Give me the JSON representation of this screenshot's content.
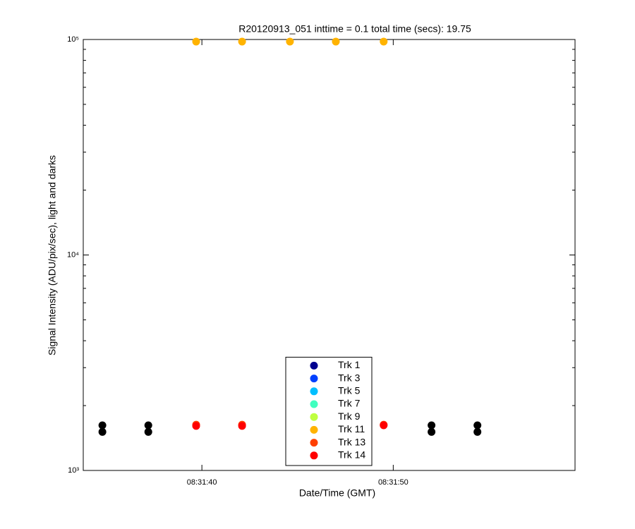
{
  "chart_data": {
    "type": "scatter",
    "title": "R20120913_051 inttime = 0.1 total time (secs): 19.75",
    "x_label": "Date/Time (GMT)",
    "y_label": "Signal Intensity (ADU/pix/sec), light and darks",
    "x": [
      "08:31:34.8",
      "08:31:37.2",
      "08:31:39.7",
      "08:31:42.1",
      "08:31:44.6",
      "08:31:47.0",
      "08:31:49.5",
      "08:31:52.0",
      "08:31:54.4"
    ],
    "xlim": [
      "08:31:33.8",
      "08:31:59.5"
    ],
    "xticks": [
      "08:31:40",
      "08:31:50"
    ],
    "ylim": [
      1000,
      100000
    ],
    "log_y": true,
    "yticks": [
      {
        "value": 1000,
        "label": "10³"
      },
      {
        "value": 10000,
        "label": "10⁴"
      },
      {
        "value": 100000,
        "label": "10⁵"
      }
    ],
    "yminorticks": [
      2000,
      3000,
      4000,
      5000,
      6000,
      7000,
      8000,
      9000,
      20000,
      30000,
      40000,
      50000,
      60000,
      70000,
      80000,
      90000
    ],
    "grid": false,
    "legend": "bottom-center",
    "series": [
      {
        "name": "Trk 1",
        "color": "#00008f",
        "values": [
          null,
          null,
          null,
          null,
          null,
          null,
          null,
          null,
          null
        ]
      },
      {
        "name": "Trk 3",
        "color": "#0040ff",
        "values": [
          null,
          null,
          null,
          null,
          null,
          null,
          null,
          null,
          null
        ]
      },
      {
        "name": "Trk 5",
        "color": "#00bfff",
        "values": [
          null,
          null,
          null,
          null,
          null,
          null,
          null,
          null,
          null
        ]
      },
      {
        "name": "Trk 7",
        "color": "#40ffbf",
        "values": [
          null,
          null,
          null,
          null,
          null,
          null,
          null,
          null,
          null
        ]
      },
      {
        "name": "Trk 9",
        "color": "#bfff40",
        "values": [
          null,
          null,
          null,
          null,
          null,
          null,
          null,
          null,
          null
        ]
      },
      {
        "name": "Trk 11",
        "color": "#ffb300",
        "values": [
          null,
          null,
          97800,
          97800,
          97800,
          97800,
          97800,
          null,
          null
        ]
      },
      {
        "name": "Trk 13",
        "color": "#ff4000",
        "values": [
          null,
          null,
          1630,
          1630,
          null,
          null,
          1630,
          null,
          null
        ]
      },
      {
        "name": "Trk 14",
        "color": "#ff0000",
        "values": [
          null,
          null,
          1610,
          1610,
          null,
          null,
          1620,
          null,
          null
        ]
      },
      {
        "color": "#000000",
        "values": [
          1620,
          1620,
          null,
          null,
          null,
          null,
          null,
          1620,
          1620
        ]
      },
      {
        "color": "#000000",
        "values": [
          1510,
          1510,
          null,
          null,
          null,
          null,
          null,
          1510,
          1510
        ]
      }
    ]
  }
}
